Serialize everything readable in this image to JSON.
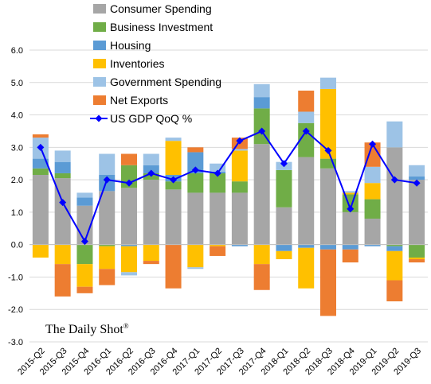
{
  "chart_data": {
    "type": "bar",
    "stacked": true,
    "grid": true,
    "legend_position": "top",
    "ylim": [
      -3.0,
      6.0
    ],
    "yticks": [
      "6.0",
      "5.0",
      "4.0",
      "3.0",
      "2.0",
      "1.0",
      "0.0",
      "-1.0",
      "-2.0",
      "-3.0"
    ],
    "categories": [
      "2015-Q2",
      "2015-Q3",
      "2015-Q4",
      "2016-Q1",
      "2016-Q2",
      "2016-Q3",
      "2016-Q4",
      "2017-Q1",
      "2017-Q2",
      "2017-Q3",
      "2017-Q4",
      "2018-Q1",
      "2018-Q2",
      "2018-Q3",
      "2018-Q4",
      "2019-Q1",
      "2019-Q2",
      "2019-Q3"
    ],
    "series": [
      {
        "name": "Consumer Spending",
        "color": "#a6a6a6",
        "values": [
          2.15,
          2.05,
          1.2,
          1.65,
          1.75,
          2.0,
          1.7,
          1.6,
          1.6,
          1.6,
          3.1,
          1.15,
          2.7,
          2.35,
          1.0,
          0.8,
          3.0,
          2.0
        ]
      },
      {
        "name": "Business Investment",
        "color": "#70ad47",
        "values": [
          0.2,
          0.15,
          -0.6,
          -0.05,
          0.7,
          0.2,
          0.25,
          0.6,
          0.6,
          0.35,
          1.1,
          1.15,
          1.05,
          0.3,
          0.55,
          0.6,
          -0.05,
          -0.4
        ]
      },
      {
        "name": "Housing",
        "color": "#5b9bd5",
        "values": [
          0.3,
          0.35,
          0.25,
          0.5,
          -0.05,
          0.25,
          0.2,
          0.65,
          0.05,
          -0.05,
          0.35,
          -0.2,
          -0.1,
          -0.15,
          -0.15,
          -0.05,
          -0.15,
          0.1
        ]
      },
      {
        "name": "Inventories",
        "color": "#ffc000",
        "values": [
          -0.4,
          -0.6,
          -0.7,
          -0.7,
          -0.8,
          -0.5,
          1.05,
          -0.7,
          -0.05,
          0.95,
          -0.6,
          -0.25,
          -1.25,
          2.15,
          0.05,
          0.5,
          -0.9,
          -0.05
        ]
      },
      {
        "name": "Government Spending",
        "color": "#9dc3e6",
        "values": [
          0.65,
          0.35,
          0.15,
          0.65,
          -0.1,
          0.35,
          0.1,
          -0.05,
          0.25,
          0.05,
          0.4,
          0.25,
          0.35,
          0.35,
          0.05,
          0.5,
          0.8,
          0.35
        ]
      },
      {
        "name": "Net Exports",
        "color": "#ed7d31",
        "values": [
          0.1,
          -1.0,
          -0.2,
          -0.5,
          0.35,
          -0.1,
          -1.35,
          0.15,
          -0.3,
          0.35,
          -0.8,
          0.0,
          0.65,
          -2.05,
          -0.4,
          0.75,
          -0.65,
          -0.1
        ]
      }
    ],
    "line": {
      "name": "US GDP QoQ %",
      "color": "#0000ff",
      "values": [
        3.0,
        1.3,
        0.1,
        2.0,
        1.9,
        2.2,
        2.0,
        2.3,
        2.2,
        3.2,
        3.5,
        2.5,
        3.5,
        2.9,
        1.1,
        3.1,
        2.0,
        1.9
      ]
    },
    "watermark": "The Daily Shot",
    "watermark_mark": "®"
  }
}
